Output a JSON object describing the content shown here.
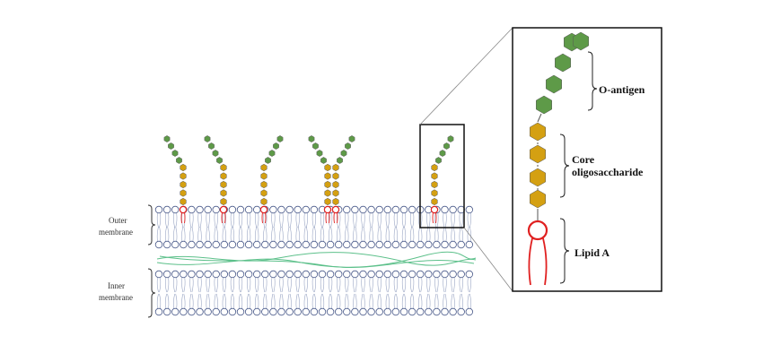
{
  "membrane_labels": {
    "outer_line1": "Outer",
    "outer_line2": "membrane",
    "inner_line1": "Inner",
    "inner_line2": "membrane"
  },
  "detail_labels": {
    "o_antigen": "O-antigen",
    "core_line1": "Core",
    "core_line2": "oligosaccharide",
    "lipid_a": "Lipid A"
  },
  "colors": {
    "o_antigen": "#5e9a48",
    "core": "#d4a012",
    "lipid": "#e02020",
    "lipid_head": "#ffffff",
    "lipid_head_stroke": "#4a5a8a",
    "peptidoglycan": "#5cc08a",
    "outline": "#222222"
  }
}
